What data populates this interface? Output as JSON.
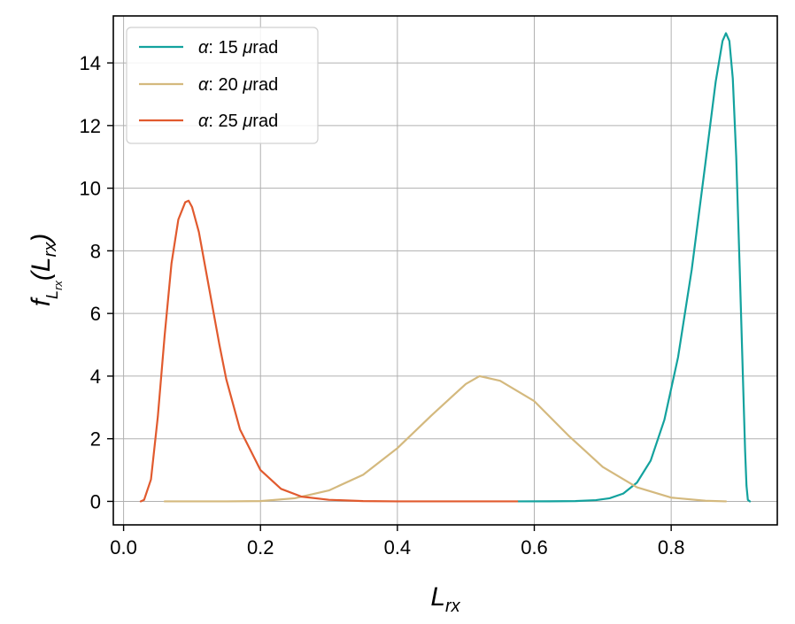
{
  "chart_data": {
    "type": "line",
    "xlabel": {
      "main": "L",
      "sub": "rx"
    },
    "ylabel": {
      "main": "f",
      "sub": "L",
      "subsub": "rx",
      "arg_open": "(L",
      "arg_sub": "rx",
      "arg_close": ")"
    },
    "xlim": [
      -0.015,
      0.955
    ],
    "ylim": [
      -0.75,
      15.5
    ],
    "xticks": [
      0.0,
      0.2,
      0.4,
      0.6,
      0.8
    ],
    "xtick_labels": [
      "0.0",
      "0.2",
      "0.4",
      "0.6",
      "0.8"
    ],
    "yticks": [
      0,
      2,
      4,
      6,
      8,
      10,
      12,
      14
    ],
    "ytick_labels": [
      "0",
      "2",
      "4",
      "6",
      "8",
      "10",
      "12",
      "14"
    ],
    "grid": true,
    "legend_position": "top-left",
    "series": [
      {
        "name": "α: 15 μrad",
        "legend_prefix": "α",
        "legend_rest": ": 15 ",
        "legend_mu": "μ",
        "legend_unit": "rad",
        "color": "#13a29e",
        "points": [
          [
            0.575,
            0.0
          ],
          [
            0.62,
            0.002
          ],
          [
            0.66,
            0.01
          ],
          [
            0.69,
            0.04
          ],
          [
            0.71,
            0.1
          ],
          [
            0.73,
            0.25
          ],
          [
            0.75,
            0.6
          ],
          [
            0.77,
            1.3
          ],
          [
            0.79,
            2.6
          ],
          [
            0.81,
            4.6
          ],
          [
            0.83,
            7.4
          ],
          [
            0.85,
            10.8
          ],
          [
            0.865,
            13.4
          ],
          [
            0.875,
            14.7
          ],
          [
            0.88,
            14.95
          ],
          [
            0.885,
            14.7
          ],
          [
            0.89,
            13.5
          ],
          [
            0.895,
            11.0
          ],
          [
            0.9,
            7.5
          ],
          [
            0.905,
            3.8
          ],
          [
            0.908,
            1.6
          ],
          [
            0.91,
            0.5
          ],
          [
            0.912,
            0.05
          ],
          [
            0.915,
            0.0
          ]
        ]
      },
      {
        "name": "α: 20 μrad",
        "legend_prefix": "α",
        "legend_rest": ": 20 ",
        "legend_mu": "μ",
        "legend_unit": "rad",
        "color": "#d4b97e",
        "points": [
          [
            0.06,
            0.0
          ],
          [
            0.15,
            0.0
          ],
          [
            0.2,
            0.01
          ],
          [
            0.25,
            0.1
          ],
          [
            0.3,
            0.35
          ],
          [
            0.35,
            0.85
          ],
          [
            0.4,
            1.7
          ],
          [
            0.45,
            2.75
          ],
          [
            0.5,
            3.75
          ],
          [
            0.52,
            4.0
          ],
          [
            0.55,
            3.85
          ],
          [
            0.6,
            3.2
          ],
          [
            0.65,
            2.1
          ],
          [
            0.7,
            1.1
          ],
          [
            0.75,
            0.45
          ],
          [
            0.8,
            0.12
          ],
          [
            0.85,
            0.02
          ],
          [
            0.88,
            0.0
          ]
        ]
      },
      {
        "name": "α: 25 μrad",
        "legend_prefix": "α",
        "legend_rest": ": 25 ",
        "legend_mu": "μ",
        "legend_unit": "rad",
        "color": "#e15a2e",
        "points": [
          [
            0.025,
            0.0
          ],
          [
            0.03,
            0.05
          ],
          [
            0.04,
            0.7
          ],
          [
            0.05,
            2.7
          ],
          [
            0.06,
            5.3
          ],
          [
            0.07,
            7.6
          ],
          [
            0.08,
            9.0
          ],
          [
            0.09,
            9.55
          ],
          [
            0.095,
            9.6
          ],
          [
            0.1,
            9.4
          ],
          [
            0.11,
            8.6
          ],
          [
            0.12,
            7.4
          ],
          [
            0.13,
            6.2
          ],
          [
            0.14,
            5.0
          ],
          [
            0.15,
            3.9
          ],
          [
            0.17,
            2.3
          ],
          [
            0.2,
            1.0
          ],
          [
            0.23,
            0.4
          ],
          [
            0.26,
            0.15
          ],
          [
            0.3,
            0.05
          ],
          [
            0.35,
            0.01
          ],
          [
            0.4,
            0.0
          ],
          [
            0.575,
            0.0
          ]
        ]
      }
    ]
  }
}
